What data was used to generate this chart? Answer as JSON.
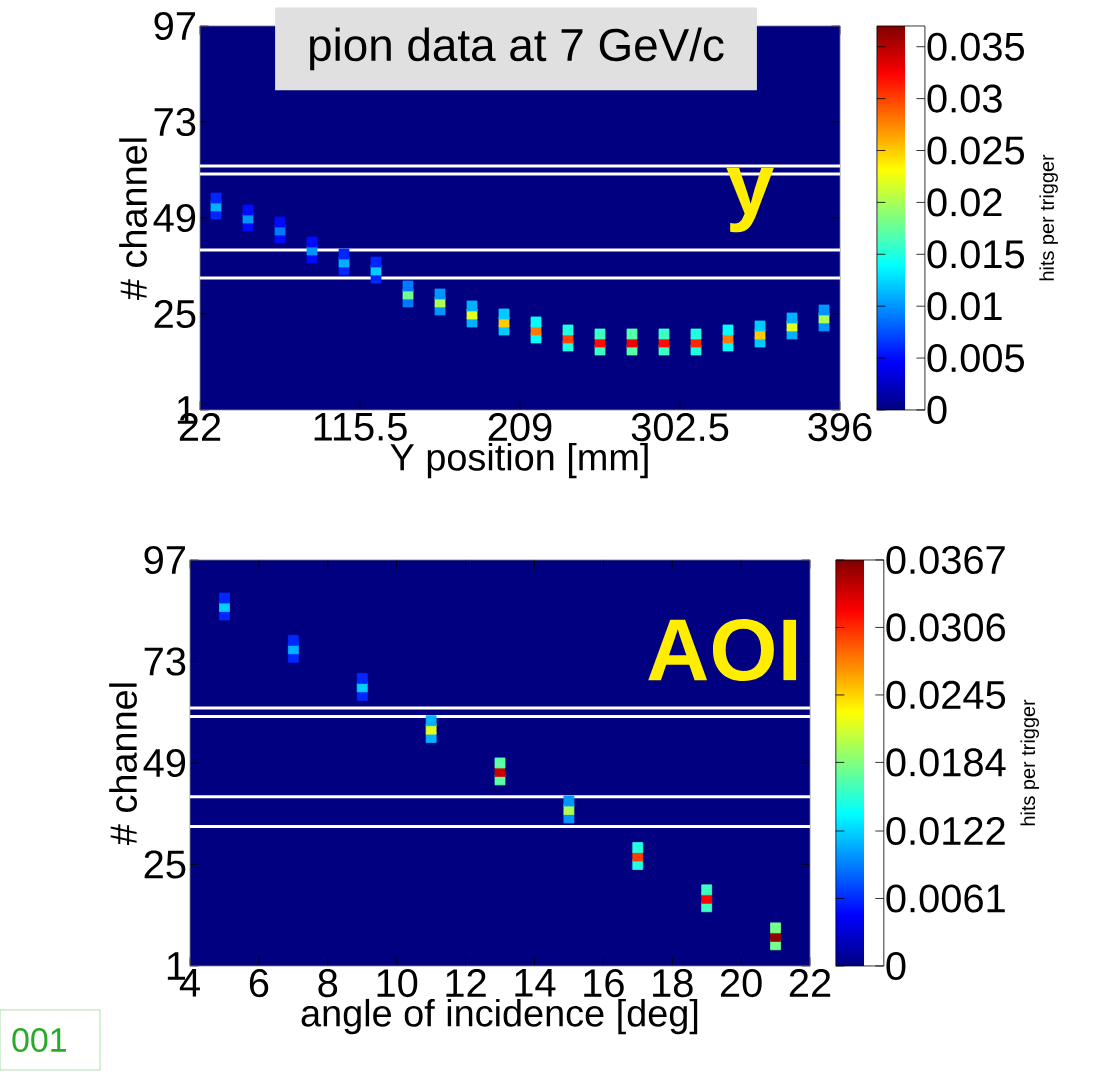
{
  "chart_data": [
    {
      "type": "scatter",
      "xlabel": "Y position [mm]",
      "ylabel": "# channel",
      "clabel": "hits per trigger",
      "x": [
        31.35,
        31.35,
        31.35,
        50.05,
        50.05,
        50.05,
        68.75,
        68.75,
        68.75,
        87.45,
        87.45,
        87.45,
        106.15,
        106.15,
        106.15,
        124.85,
        124.85,
        124.85,
        143.55,
        143.55,
        143.55,
        162.25,
        162.25,
        162.25,
        180.95,
        180.95,
        180.95,
        199.65,
        199.65,
        199.65,
        218.35,
        218.35,
        218.35,
        237.05,
        237.05,
        237.05,
        255.75,
        255.75,
        255.75,
        274.45,
        274.45,
        274.45,
        293.15,
        293.15,
        293.15,
        311.85,
        311.85,
        311.85,
        330.55,
        330.55,
        330.55,
        349.25,
        349.25,
        349.25,
        367.95,
        367.95,
        367.95,
        386.65,
        386.65,
        386.65
      ],
      "values": [
        50,
        52,
        54,
        47,
        49,
        51,
        44,
        46,
        48,
        39,
        41,
        43,
        36,
        38,
        40,
        34,
        36,
        38,
        28,
        30,
        32,
        26,
        28,
        30,
        23,
        25,
        27,
        21,
        23,
        25,
        19,
        21,
        23,
        17,
        19,
        21,
        16,
        18,
        20,
        16,
        18,
        20,
        16,
        18,
        20,
        16,
        18,
        20,
        17,
        19,
        21,
        18,
        20,
        22,
        20,
        22,
        24,
        22,
        24,
        26
      ],
      "cvalues": [
        0.006,
        0.011,
        0.006,
        0.005,
        0.01,
        0.005,
        0.005,
        0.009,
        0.005,
        0.005,
        0.01,
        0.005,
        0.006,
        0.011,
        0.006,
        0.006,
        0.012,
        0.006,
        0.009,
        0.018,
        0.009,
        0.01,
        0.02,
        0.01,
        0.011,
        0.022,
        0.011,
        0.012,
        0.025,
        0.012,
        0.014,
        0.028,
        0.014,
        0.015,
        0.03,
        0.015,
        0.016,
        0.032,
        0.016,
        0.017,
        0.033,
        0.017,
        0.016,
        0.032,
        0.016,
        0.015,
        0.031,
        0.015,
        0.014,
        0.028,
        0.014,
        0.012,
        0.025,
        0.012,
        0.011,
        0.022,
        0.011,
        0.01,
        0.02,
        0.01
      ],
      "xlim": [
        22,
        396
      ],
      "ylim": [
        1,
        97
      ],
      "xticks": [
        22,
        115.5,
        209,
        302.5,
        396
      ],
      "yticks": [
        1,
        25,
        49,
        73,
        97
      ],
      "clim": [
        0,
        0.037
      ],
      "cticks": [
        0,
        0.005,
        0.01,
        0.015,
        0.02,
        0.025,
        0.03,
        0.035
      ],
      "marker": "square",
      "ref_lines": [
        {
          "axis": "y",
          "value": 62,
          "color": "#ffffff"
        },
        {
          "axis": "y",
          "value": 60,
          "color": "#ffffff"
        },
        {
          "axis": "y",
          "value": 41,
          "color": "#ffffff"
        },
        {
          "axis": "y",
          "value": 34,
          "color": "#ffffff"
        }
      ],
      "annotations": [
        "pion data at 7 GeV/c",
        "y"
      ]
    },
    {
      "type": "scatter",
      "xlabel": "angle of incidence [deg]",
      "ylabel": "# channel",
      "clabel": "hits per trigger",
      "x": [
        5,
        5,
        5,
        7,
        7,
        7,
        9,
        9,
        9,
        11,
        11,
        11,
        13,
        13,
        13,
        15,
        15,
        15,
        17,
        17,
        17,
        19,
        19,
        19,
        21,
        21,
        21
      ],
      "values": [
        84,
        86,
        88,
        74,
        76,
        78,
        65,
        67,
        69,
        55,
        57,
        59,
        45,
        47,
        49,
        36,
        38,
        40,
        25,
        27,
        29,
        15,
        17,
        19,
        6,
        8,
        10
      ],
      "cvalues": [
        0.006,
        0.012,
        0.006,
        0.006,
        0.011,
        0.006,
        0.006,
        0.012,
        0.006,
        0.011,
        0.022,
        0.011,
        0.017,
        0.034,
        0.017,
        0.01,
        0.02,
        0.01,
        0.015,
        0.03,
        0.015,
        0.016,
        0.032,
        0.016,
        0.018,
        0.036,
        0.018
      ],
      "xlim": [
        4,
        22
      ],
      "ylim": [
        1,
        97
      ],
      "xticks": [
        4,
        6,
        8,
        10,
        12,
        14,
        16,
        18,
        20,
        22
      ],
      "yticks": [
        1,
        25,
        49,
        73,
        97
      ],
      "clim": [
        0,
        0.0367
      ],
      "cticks": [
        0,
        0.0061,
        0.0122,
        0.0184,
        0.0245,
        0.0306,
        0.0367
      ],
      "marker": "square",
      "ref_lines": [
        {
          "axis": "y",
          "value": 62,
          "color": "#ffffff"
        },
        {
          "axis": "y",
          "value": 60,
          "color": "#ffffff"
        },
        {
          "axis": "y",
          "value": 41,
          "color": "#ffffff"
        },
        {
          "axis": "y",
          "value": 34,
          "color": "#ffffff"
        }
      ],
      "annotations": [
        "AOI",
        "001"
      ]
    }
  ]
}
